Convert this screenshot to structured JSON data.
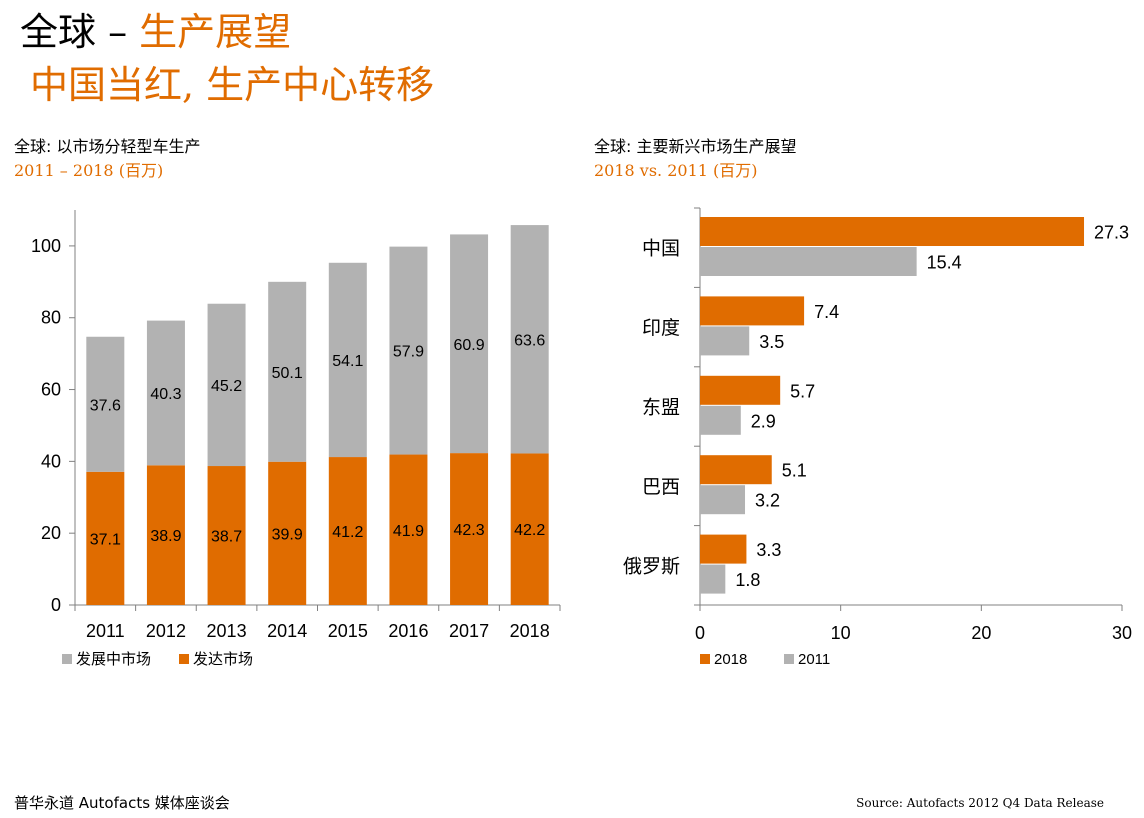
{
  "slide": {
    "title_prefix": "全球 – ",
    "title_accent": "生产展望",
    "subtitle": "中国当红, 生产中心转移",
    "footer_left": "普华永道 Autofacts 媒体座谈会",
    "footer_right": "Source: Autofacts 2012 Q4 Data Release"
  },
  "colors": {
    "orange": "#e06c00",
    "gray": "#b2b2b2",
    "axis": "#808080"
  },
  "chart_data": [
    {
      "type": "bar",
      "stacked": true,
      "title": "全球: 以市场分轻型车生产",
      "subtitle": "2011 – 2018 (百万)",
      "categories": [
        "2011",
        "2012",
        "2013",
        "2014",
        "2015",
        "2016",
        "2017",
        "2018"
      ],
      "series": [
        {
          "name": "发达市场",
          "color": "#e06c00",
          "values": [
            37.1,
            38.9,
            38.7,
            39.9,
            41.2,
            41.9,
            42.3,
            42.2
          ]
        },
        {
          "name": "发展中市场",
          "color": "#b2b2b2",
          "values": [
            37.6,
            40.3,
            45.2,
            50.1,
            54.1,
            57.9,
            60.9,
            63.6
          ]
        }
      ],
      "legend_order": [
        "发展中市场",
        "发达市场"
      ],
      "ylim": [
        0,
        110
      ],
      "yticks": [
        0,
        20,
        40,
        60,
        80,
        100
      ],
      "legend_position": "bottom",
      "grid": false
    },
    {
      "type": "bar",
      "orientation": "horizontal",
      "title": "全球: 主要新兴市场生产展望",
      "subtitle": "2018 vs. 2011 (百万)",
      "categories": [
        "中国",
        "印度",
        "东盟",
        "巴西",
        "俄罗斯"
      ],
      "series": [
        {
          "name": "2018",
          "color": "#e06c00",
          "values": [
            27.3,
            7.4,
            5.7,
            5.1,
            3.3
          ]
        },
        {
          "name": "2011",
          "color": "#b2b2b2",
          "values": [
            15.4,
            3.5,
            2.9,
            3.2,
            1.8
          ]
        }
      ],
      "xlim": [
        0,
        30
      ],
      "xticks": [
        0,
        10,
        20,
        30
      ],
      "legend_position": "bottom",
      "grid": false
    }
  ]
}
